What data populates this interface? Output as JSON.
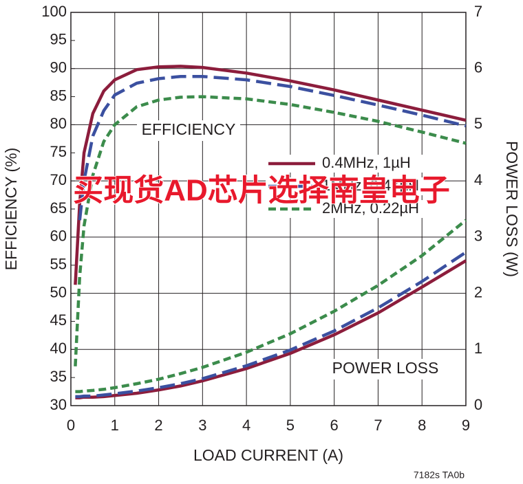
{
  "chart_data": {
    "type": "line",
    "x_label": "LOAD CURRENT (A)",
    "y_label": "EFFICIENCY (%)",
    "y2_label": "POWER LOSS (W)",
    "annotations": [
      "EFFICIENCY",
      "POWER LOSS",
      "买现货AD芯片选择南皇电子",
      "7182s TA0b"
    ],
    "x": [
      0.1,
      0.2,
      0.3,
      0.5,
      0.75,
      1,
      1.5,
      2,
      2.5,
      3,
      4,
      5,
      6,
      7,
      8,
      9
    ],
    "series": [
      {
        "name": "0.4MHz, 1µH",
        "color": "#8c1d3c",
        "line_style": "solid",
        "axis": "y",
        "values": [
          51.5,
          66,
          75,
          82,
          86,
          88,
          89.8,
          90.3,
          90.4,
          90.2,
          89.2,
          87.8,
          86.2,
          84.4,
          82.6,
          80.8
        ]
      },
      {
        "name": "1MHz, 0.47µH",
        "color": "#3b50a0",
        "line_style": "dashed",
        "axis": "y",
        "values": [
          null,
          63,
          70,
          78,
          82.5,
          85.3,
          87.4,
          88.2,
          88.6,
          88.6,
          88,
          86.8,
          85.2,
          83.5,
          81.7,
          79.8
        ]
      },
      {
        "name": "2MHz, 0.22µH",
        "color": "#3c8c4c",
        "line_style": "dotted",
        "axis": "y",
        "values": [
          37,
          53,
          62,
          71,
          77,
          80,
          83.2,
          84.4,
          84.9,
          85,
          84.6,
          83.6,
          82.2,
          80.6,
          78.7,
          76.7
        ]
      },
      {
        "color": "#8c1d3c",
        "line_style": "solid",
        "axis": "y2",
        "values": [
          0.14,
          0.14,
          0.15,
          0.15,
          0.16,
          0.18,
          0.22,
          0.28,
          0.35,
          0.44,
          0.66,
          0.93,
          1.26,
          1.65,
          2.11,
          2.58
        ]
      },
      {
        "color": "#3b50a0",
        "line_style": "dashed",
        "axis": "y2",
        "values": [
          0.16,
          0.16,
          0.17,
          0.17,
          0.19,
          0.21,
          0.26,
          0.32,
          0.39,
          0.48,
          0.71,
          0.99,
          1.33,
          1.74,
          2.21,
          2.73
        ]
      },
      {
        "color": "#3c8c4c",
        "line_style": "dotted",
        "axis": "y2",
        "values": [
          0.25,
          0.25,
          0.26,
          0.27,
          0.29,
          0.32,
          0.39,
          0.47,
          0.57,
          0.68,
          0.95,
          1.28,
          1.68,
          2.14,
          2.67,
          3.3
        ]
      }
    ],
    "xlim": [
      0,
      9
    ],
    "xticks": [
      0,
      1,
      2,
      3,
      4,
      5,
      6,
      7,
      8,
      9
    ],
    "ylim": [
      30,
      100
    ],
    "yticks": [
      30,
      35,
      40,
      45,
      50,
      55,
      60,
      65,
      70,
      75,
      80,
      85,
      90,
      95,
      100
    ],
    "y2lim": [
      0,
      7
    ],
    "y2ticks": [
      0,
      1,
      2,
      3,
      4,
      5,
      6,
      7
    ],
    "grid": true
  }
}
